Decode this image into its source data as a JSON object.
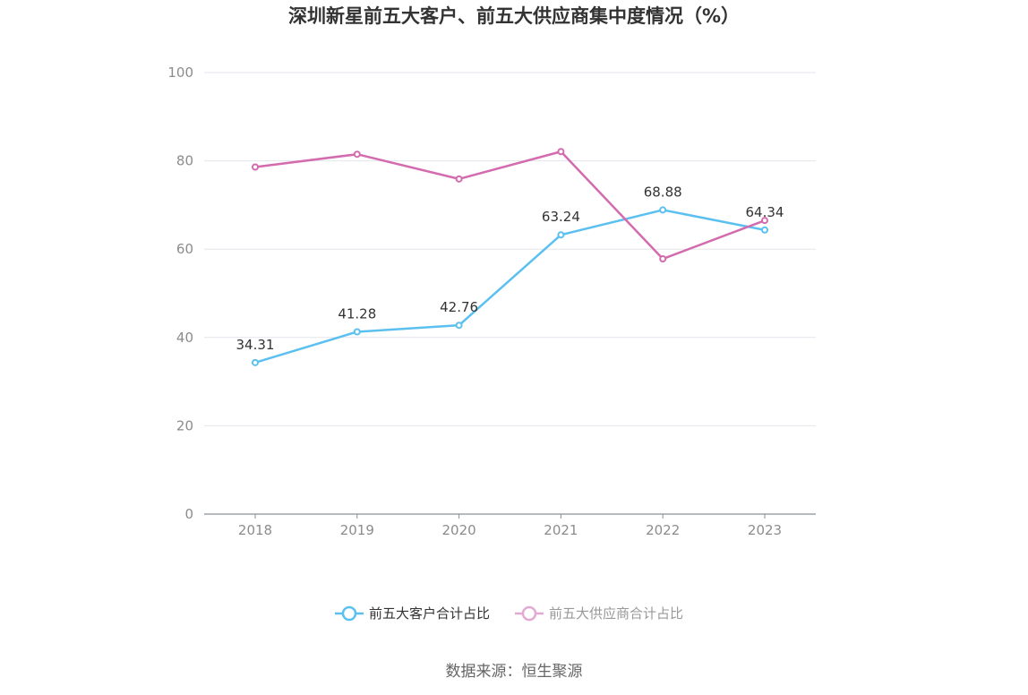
{
  "chart_data": {
    "type": "line",
    "title": "深圳新星前五大客户、前五大供应商集中度情况（%）",
    "categories": [
      "2018",
      "2019",
      "2020",
      "2021",
      "2022",
      "2023"
    ],
    "ylim": [
      0,
      100
    ],
    "yticks": [
      0,
      20,
      40,
      60,
      80,
      100
    ],
    "grid": true,
    "legend_position": "bottom",
    "series": [
      {
        "name": "前五大客户合计占比",
        "values": [
          34.31,
          41.28,
          42.76,
          63.24,
          68.88,
          64.34
        ],
        "color": "#5bc0f0",
        "show_labels": true
      },
      {
        "name": "前五大供应商合计占比",
        "values": [
          78.6,
          81.5,
          75.9,
          82.1,
          57.8,
          66.5
        ],
        "color": "#d36bae",
        "show_labels": false
      }
    ],
    "legend_colors": [
      "#5bc0f0",
      "#e4a9d2"
    ],
    "legend_text_colors": [
      "#333333",
      "#999999"
    ]
  },
  "source": "数据来源：恒生聚源"
}
